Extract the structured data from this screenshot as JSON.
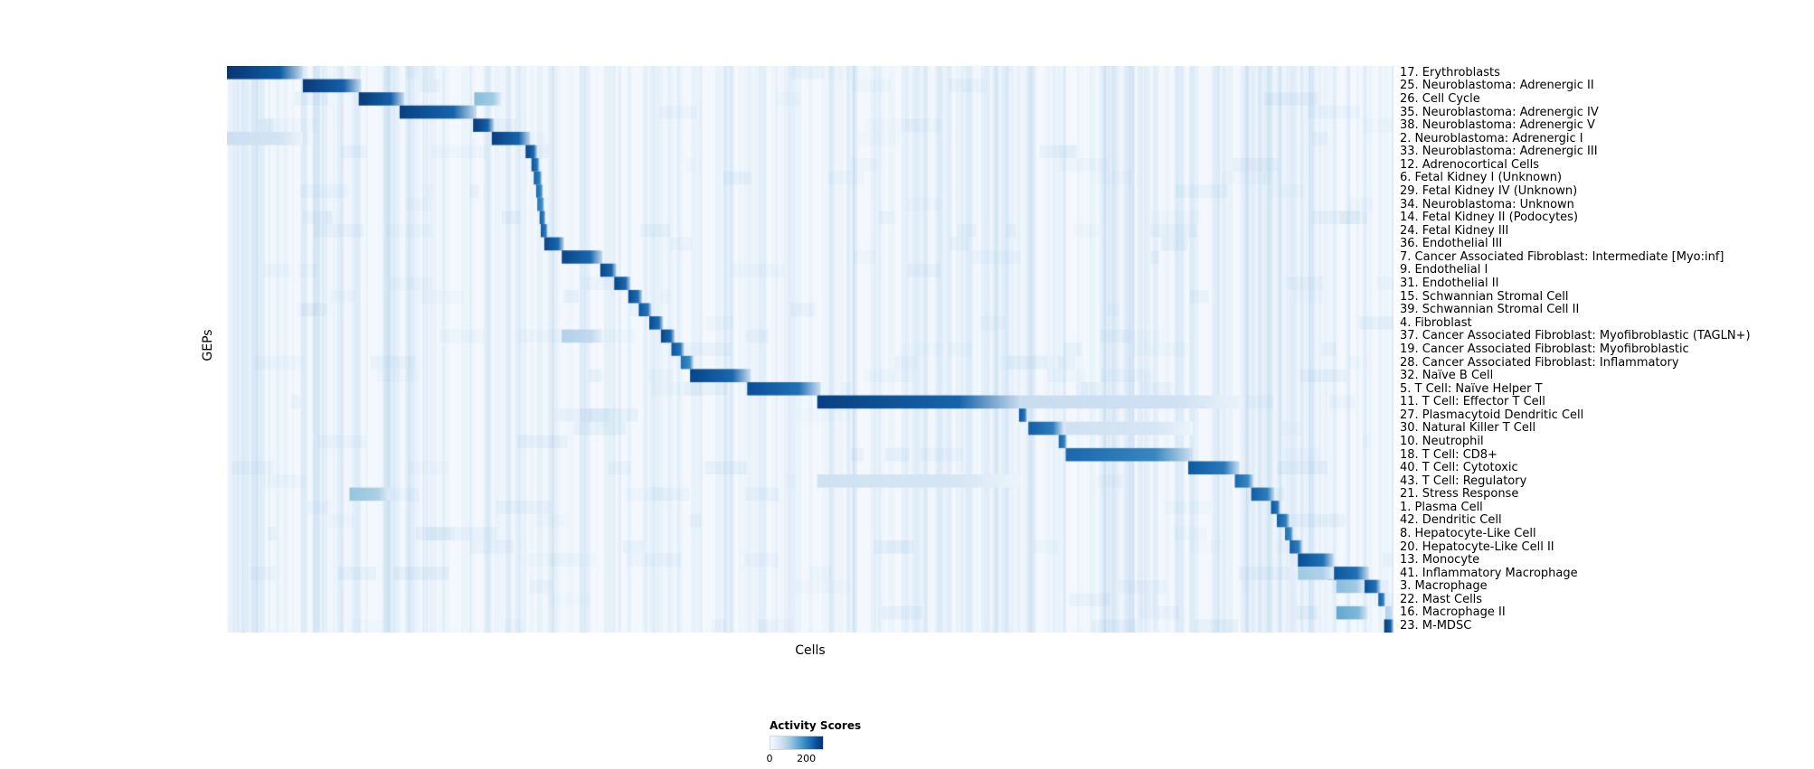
{
  "figure": {
    "background": "#ffffff"
  },
  "chart_data": {
    "type": "heatmap",
    "title": "",
    "xlabel": "Cells",
    "ylabel": "GEPs",
    "grid": false,
    "x_axis": {
      "label": "Cells",
      "tick_labels": []
    },
    "y_axis": {
      "label": "GEPs"
    },
    "legend": {
      "title": "Activity Scores",
      "ticks": [
        "0",
        "200"
      ],
      "tick_values": [
        0,
        200
      ],
      "scale_max": 255,
      "position": "bottom-center"
    },
    "colormap": {
      "name": "Blues",
      "stops": [
        "#f7fbff",
        "#deebf7",
        "#c6dbef",
        "#9ecae1",
        "#6baed6",
        "#4292c6",
        "#2171b5",
        "#08519c",
        "#08306b"
      ]
    },
    "value_units": "activity score",
    "rows": [
      {
        "label": "17. Erythroblasts",
        "blocks": [
          [
            0.0,
            0.065,
            250
          ]
        ]
      },
      {
        "label": "25. Neuroblastoma: Adrenergic II",
        "blocks": [
          [
            0.065,
            0.115,
            245
          ]
        ]
      },
      {
        "label": "26. Cell Cycle",
        "blocks": [
          [
            0.113,
            0.152,
            245
          ],
          [
            0.212,
            0.235,
            110
          ]
        ]
      },
      {
        "label": "35. Neuroblastoma: Adrenergic IV",
        "blocks": [
          [
            0.148,
            0.214,
            240
          ]
        ]
      },
      {
        "label": "38. Neuroblastoma: Adrenergic V",
        "blocks": [
          [
            0.211,
            0.229,
            245
          ]
        ]
      },
      {
        "label": "2. Neuroblastoma: Adrenergic I",
        "blocks": [
          [
            0.227,
            0.26,
            240
          ],
          [
            0.0,
            0.065,
            55
          ]
        ]
      },
      {
        "label": "33. Neuroblastoma: Adrenergic III",
        "blocks": [
          [
            0.256,
            0.266,
            235
          ]
        ]
      },
      {
        "label": "12. Adrenocortical Cells",
        "blocks": [
          [
            0.261,
            0.268,
            220
          ]
        ]
      },
      {
        "label": "6. Fetal Kidney I (Unknown)",
        "blocks": [
          [
            0.263,
            0.27,
            210
          ]
        ]
      },
      {
        "label": "29. Fetal Kidney IV (Unknown)",
        "blocks": [
          [
            0.265,
            0.271,
            200
          ]
        ]
      },
      {
        "label": "34. Neuroblastoma: Unknown",
        "blocks": [
          [
            0.266,
            0.272,
            190
          ]
        ]
      },
      {
        "label": "14. Fetal Kidney II (Podocytes)",
        "blocks": [
          [
            0.268,
            0.273,
            210
          ]
        ]
      },
      {
        "label": "24. Fetal Kidney III",
        "blocks": [
          [
            0.269,
            0.275,
            215
          ]
        ]
      },
      {
        "label": "36. Endothelial III",
        "blocks": [
          [
            0.272,
            0.289,
            235
          ]
        ]
      },
      {
        "label": "7. Cancer Associated Fibroblast: Intermediate [Myo:inf]",
        "blocks": [
          [
            0.287,
            0.322,
            235
          ]
        ]
      },
      {
        "label": "9. Endothelial I",
        "blocks": [
          [
            0.32,
            0.334,
            235
          ]
        ]
      },
      {
        "label": "31. Endothelial II",
        "blocks": [
          [
            0.332,
            0.346,
            235
          ]
        ]
      },
      {
        "label": "15. Schwannian Stromal Cell",
        "blocks": [
          [
            0.344,
            0.356,
            230
          ]
        ]
      },
      {
        "label": "39. Schwannian Stromal Cell II",
        "blocks": [
          [
            0.353,
            0.364,
            220
          ]
        ]
      },
      {
        "label": "4. Fibroblast",
        "blocks": [
          [
            0.362,
            0.374,
            230
          ]
        ]
      },
      {
        "label": "37. Cancer Associated Fibroblast: Myofibroblastic (TAGLN+)",
        "blocks": [
          [
            0.372,
            0.384,
            235
          ],
          [
            0.287,
            0.322,
            80
          ]
        ]
      },
      {
        "label": "19. Cancer Associated Fibroblast: Myofibroblastic",
        "blocks": [
          [
            0.381,
            0.392,
            220
          ]
        ]
      },
      {
        "label": "28. Cancer Associated Fibroblast: Inflammatory",
        "blocks": [
          [
            0.389,
            0.4,
            195
          ]
        ]
      },
      {
        "label": "32. Naïve B Cell",
        "blocks": [
          [
            0.397,
            0.449,
            235
          ]
        ]
      },
      {
        "label": "5. T Cell: Naïve Helper T",
        "blocks": [
          [
            0.446,
            0.509,
            225
          ]
        ]
      },
      {
        "label": "11. T Cell: Effector T Cell",
        "blocks": [
          [
            0.506,
            0.68,
            240
          ],
          [
            0.68,
            0.87,
            60
          ]
        ]
      },
      {
        "label": "27. Plasmacytoid Dendritic Cell",
        "blocks": [
          [
            0.679,
            0.686,
            220
          ]
        ]
      },
      {
        "label": "30. Natural Killer T Cell",
        "blocks": [
          [
            0.687,
            0.717,
            210
          ],
          [
            0.719,
            0.828,
            50
          ]
        ]
      },
      {
        "label": "10. Neutrophil",
        "blocks": [
          [
            0.713,
            0.72,
            205
          ]
        ]
      },
      {
        "label": "18. T Cell: CD8+",
        "blocks": [
          [
            0.719,
            0.828,
            200
          ]
        ]
      },
      {
        "label": "40. T Cell: Cytotoxic",
        "blocks": [
          [
            0.824,
            0.868,
            215
          ]
        ]
      },
      {
        "label": "43. T Cell: Regulatory",
        "blocks": [
          [
            0.864,
            0.88,
            200
          ],
          [
            0.506,
            0.68,
            50
          ]
        ]
      },
      {
        "label": "21. Stress Response",
        "blocks": [
          [
            0.878,
            0.898,
            210
          ],
          [
            0.105,
            0.14,
            100
          ]
        ]
      },
      {
        "label": "1. Plasma Cell",
        "blocks": [
          [
            0.895,
            0.903,
            220
          ]
        ]
      },
      {
        "label": "42. Dendritic Cell",
        "blocks": [
          [
            0.9,
            0.911,
            210
          ]
        ]
      },
      {
        "label": "8. Hepatocyte-Like Cell",
        "blocks": [
          [
            0.907,
            0.914,
            195
          ]
        ]
      },
      {
        "label": "20. Hepatocyte-Like Cell II",
        "blocks": [
          [
            0.911,
            0.922,
            210
          ]
        ]
      },
      {
        "label": "13. Monocyte",
        "blocks": [
          [
            0.918,
            0.949,
            225
          ]
        ]
      },
      {
        "label": "41. Inflammatory Macrophage",
        "blocks": [
          [
            0.944,
            0.979,
            225
          ],
          [
            0.918,
            0.949,
            95
          ]
        ]
      },
      {
        "label": "3. Macrophage",
        "blocks": [
          [
            0.975,
            0.989,
            225
          ],
          [
            0.951,
            0.975,
            110
          ]
        ]
      },
      {
        "label": "22. Mast Cells",
        "blocks": [
          [
            0.987,
            0.993,
            210
          ]
        ]
      },
      {
        "label": "16. Macrophage II",
        "blocks": [
          [
            0.951,
            0.978,
            135
          ],
          [
            0.993,
            1.0,
            80
          ]
        ]
      },
      {
        "label": "23. M-MDSC",
        "blocks": [
          [
            0.992,
            1.0,
            245
          ]
        ]
      }
    ]
  }
}
